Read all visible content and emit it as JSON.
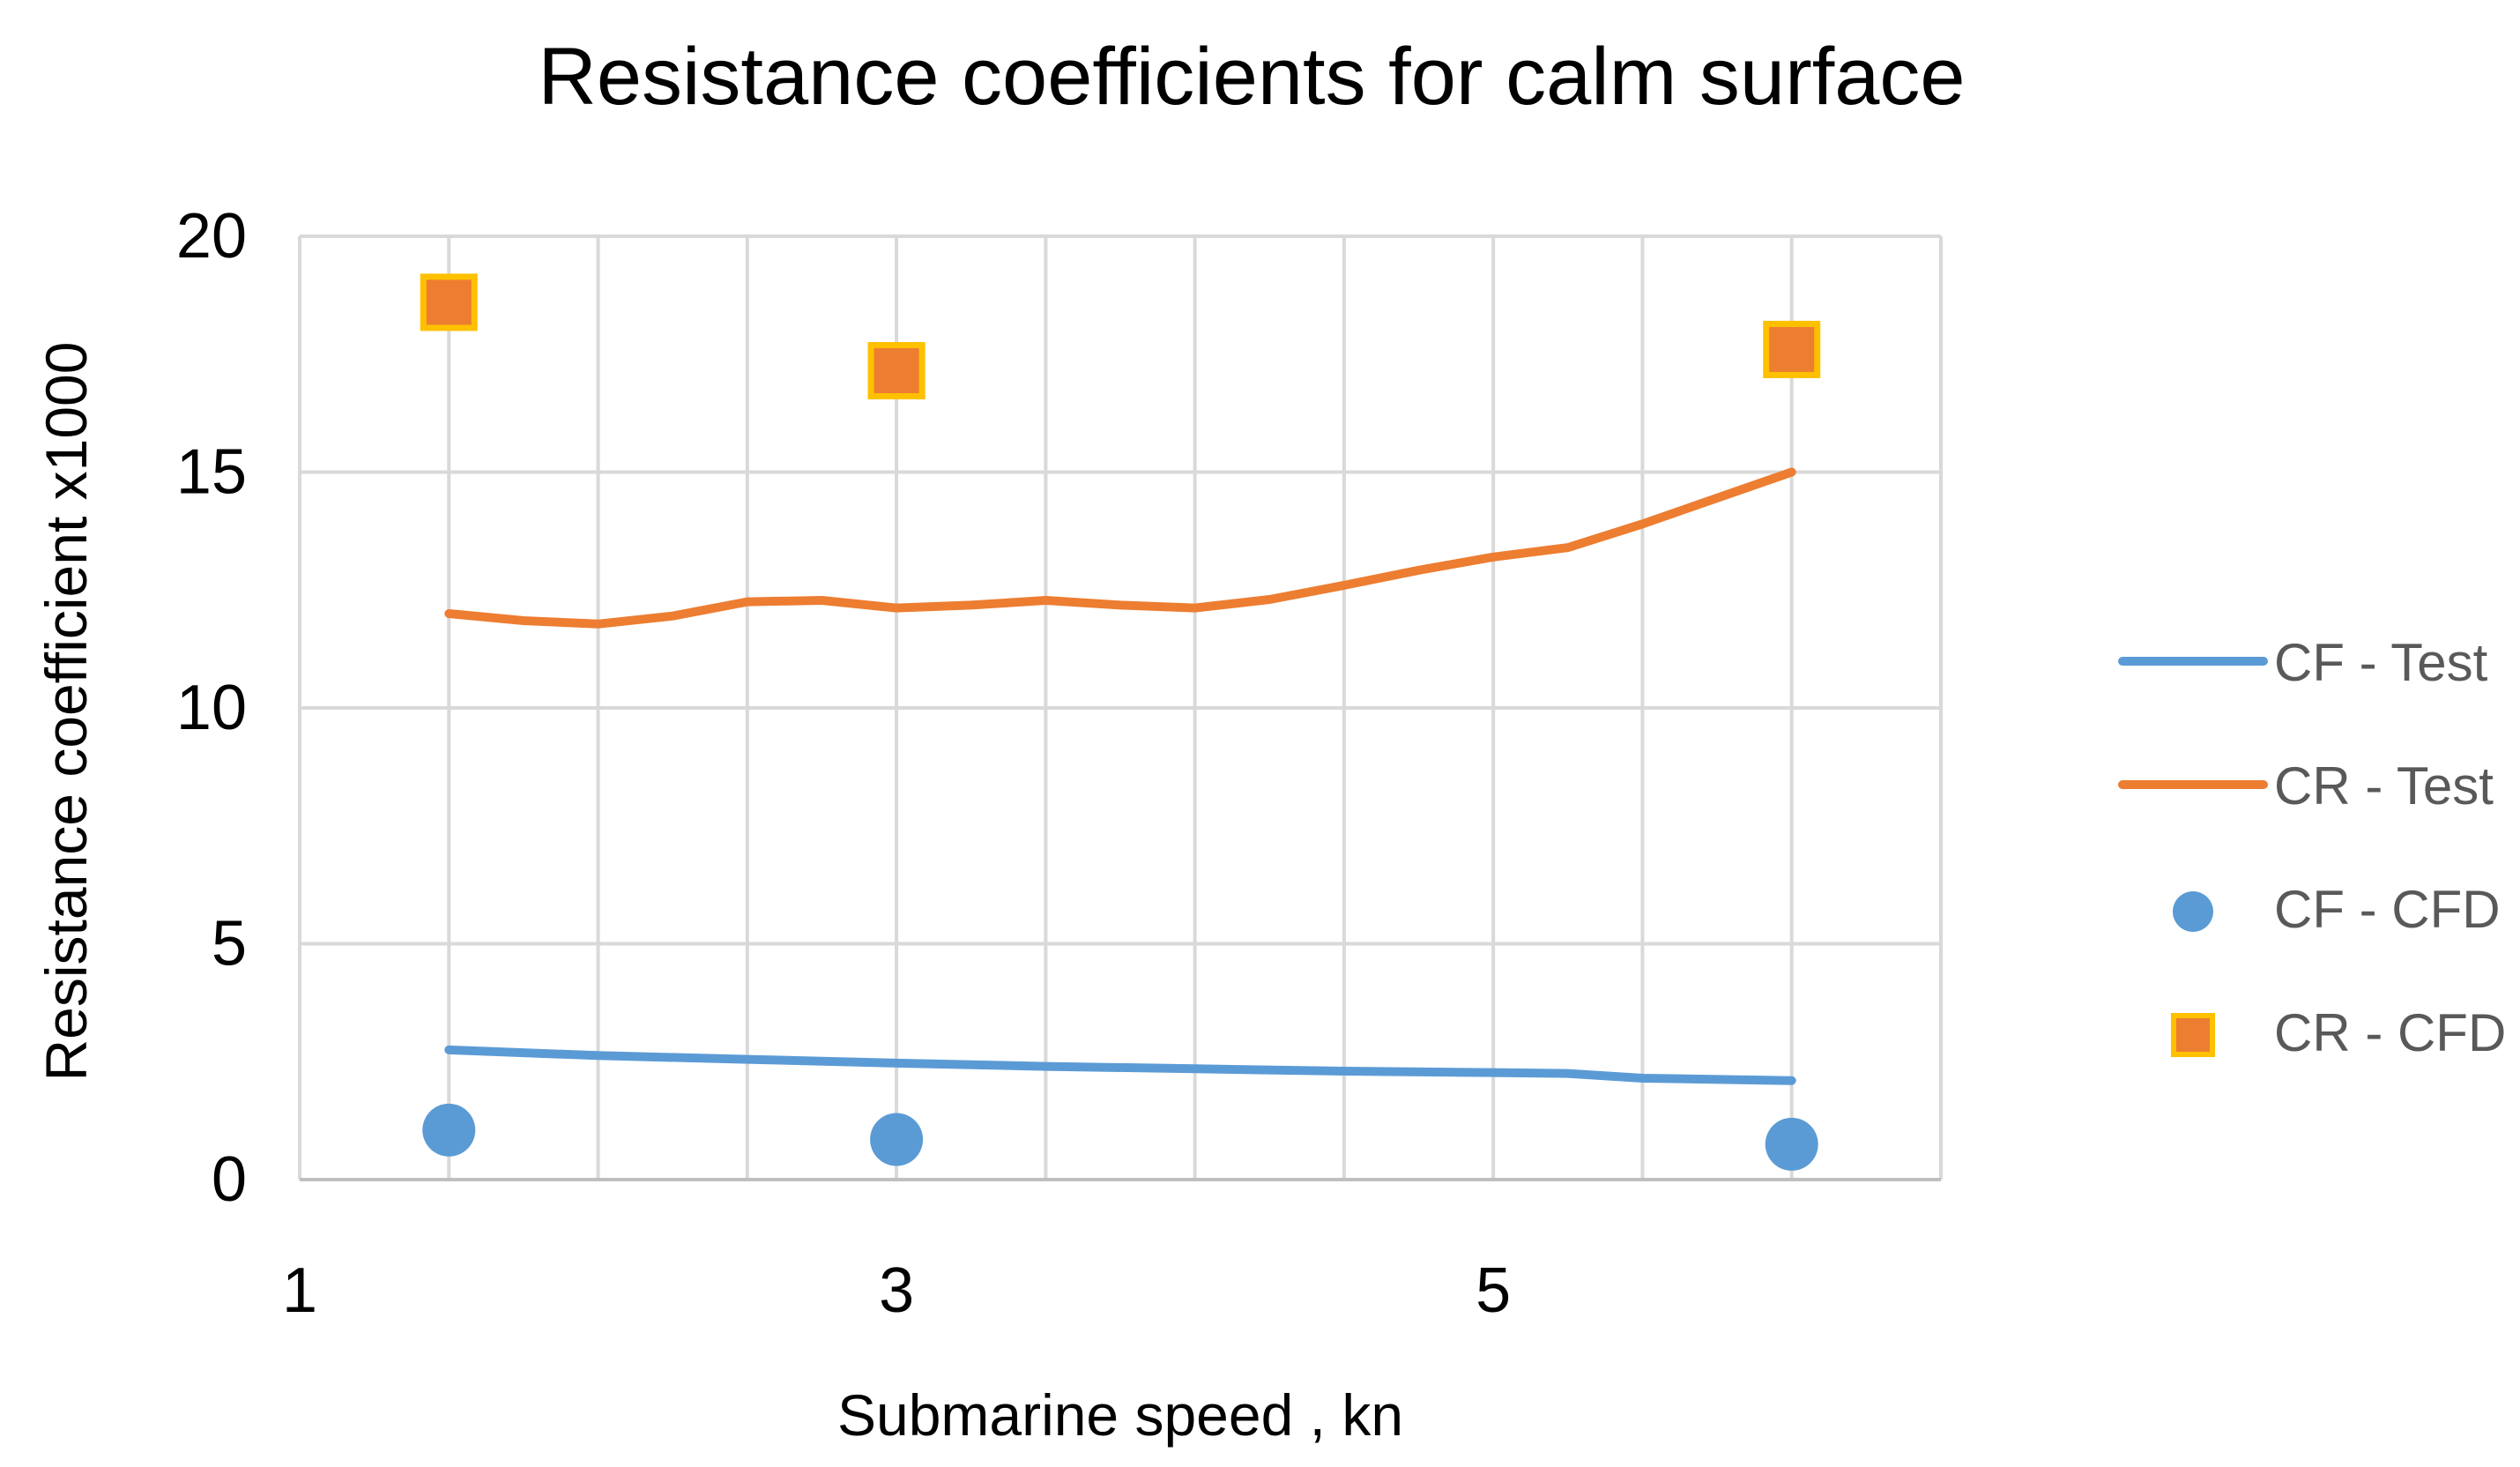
{
  "chart_data": {
    "type": "line",
    "title": "Resistance coefficients for calm surface",
    "xlabel": "Submarine speed , kn",
    "ylabel": "Resistance coefficient  x1000",
    "xlim": [
      1,
      6.5
    ],
    "ylim": [
      0,
      20
    ],
    "x_ticks": [
      1,
      3,
      5
    ],
    "y_ticks": [
      0,
      5,
      10,
      15,
      20
    ],
    "grid": true,
    "legend_position": "right",
    "series": [
      {
        "name": "CF - Test",
        "kind": "line",
        "color": "#5b9bd5",
        "x": [
          1.5,
          2.0,
          2.5,
          3.0,
          3.5,
          4.0,
          4.5,
          5.0,
          5.25,
          5.5,
          6.0
        ],
        "y": [
          2.75,
          2.63,
          2.55,
          2.47,
          2.4,
          2.35,
          2.3,
          2.27,
          2.25,
          2.15,
          2.1
        ]
      },
      {
        "name": "CR - Test",
        "kind": "line",
        "color": "#ed7d31",
        "x": [
          1.5,
          1.75,
          2.0,
          2.25,
          2.5,
          2.75,
          3.0,
          3.25,
          3.5,
          3.75,
          4.0,
          4.25,
          4.5,
          4.75,
          5.0,
          5.25,
          5.5,
          5.75,
          6.0
        ],
        "y": [
          12.0,
          11.85,
          11.78,
          11.95,
          12.25,
          12.28,
          12.12,
          12.18,
          12.28,
          12.18,
          12.12,
          12.3,
          12.6,
          12.92,
          13.2,
          13.4,
          13.9,
          14.45,
          15.0
        ]
      },
      {
        "name": "CF - CFD",
        "kind": "scatter",
        "marker": "circle",
        "color": "#5b9bd5",
        "x": [
          1.5,
          3.0,
          6.0
        ],
        "y": [
          1.05,
          0.85,
          0.75
        ]
      },
      {
        "name": "CR - CFD",
        "kind": "scatter",
        "marker": "square",
        "color": "#ed7d31",
        "edge_color": "#ffc000",
        "x": [
          1.5,
          3.0,
          6.0
        ],
        "y": [
          18.6,
          17.15,
          17.6
        ]
      }
    ]
  }
}
